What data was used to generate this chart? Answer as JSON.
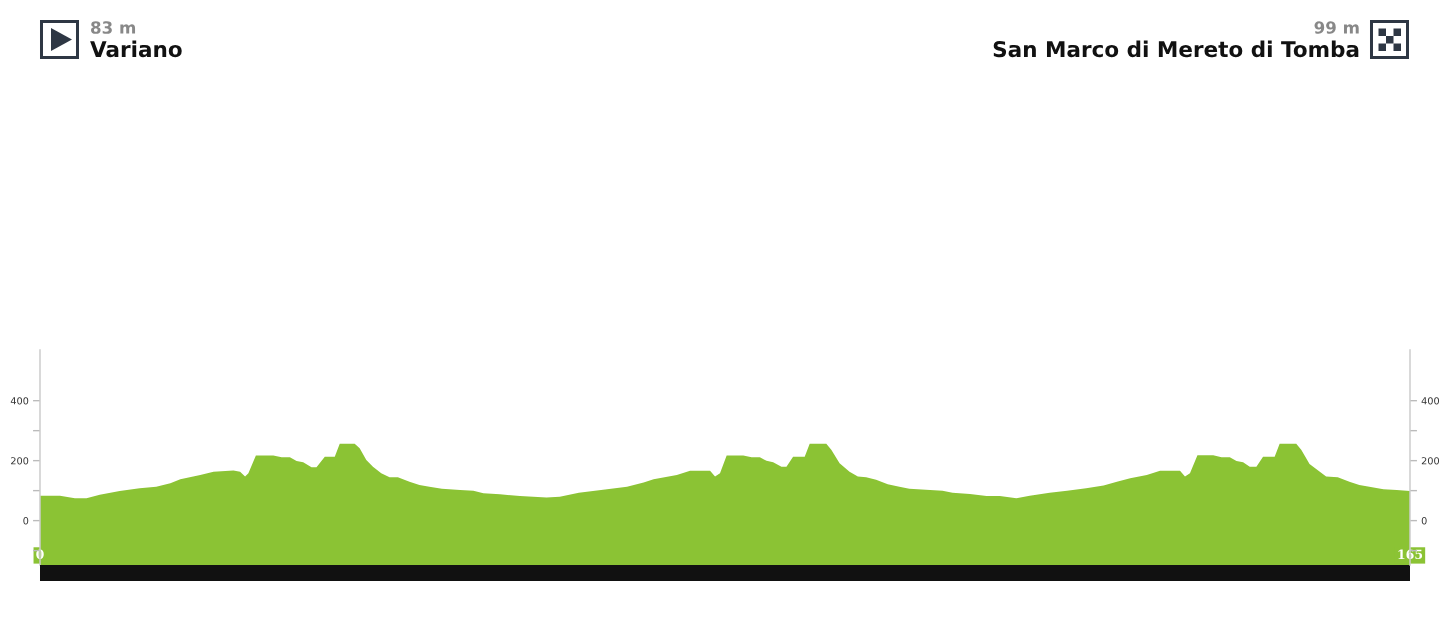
{
  "chart_data": {
    "type": "area",
    "annotations": [
      "83 m",
      "Variano",
      "99 m",
      "San Marco di Mereto di Tomba"
    ],
    "x": [
      0,
      0.6,
      2.4,
      4.2,
      5.6,
      7.2,
      9.6,
      12.0,
      14.0,
      15.7,
      16.9,
      19.3,
      20.9,
      23.3,
      24.1,
      24.7,
      25.1,
      26.0,
      28.1,
      29.1,
      30.1,
      30.9,
      31.7,
      32.7,
      33.3,
      34.3,
      35.5,
      36.1,
      37.9,
      38.5,
      39.3,
      40.1,
      41.1,
      42.1,
      43.1,
      44.5,
      45.7,
      46.9,
      48.4,
      50.6,
      52.2,
      53.4,
      55.4,
      57.8,
      61.0,
      62.6,
      64.9,
      68.3,
      70.7,
      72.7,
      73.9,
      76.7,
      78.3,
      80.7,
      81.3,
      81.9,
      82.7,
      84.7,
      85.7,
      86.7,
      87.5,
      88.3,
      89.3,
      89.9,
      90.7,
      92.1,
      92.7,
      94.7,
      95.3,
      96.3,
      97.5,
      98.5,
      99.5,
      100.7,
      102.1,
      103.5,
      104.7,
      108.7,
      109.9,
      112.0,
      114.0,
      115.6,
      117.6,
      119.2,
      121.6,
      123.7,
      126.0,
      128.1,
      129.7,
      131.3,
      133.3,
      134.9,
      137.3,
      137.9,
      138.5,
      139.4,
      141.3,
      142.3,
      143.3,
      144.1,
      144.9,
      145.7,
      146.5,
      147.3,
      148.7,
      149.3,
      151.3,
      151.9,
      152.9,
      154.9,
      156.3,
      157.7,
      158.9,
      160.1,
      161.8,
      163.4,
      165
    ],
    "values": [
      83,
      83,
      83,
      75,
      75,
      86,
      99,
      108,
      113,
      125,
      138,
      152,
      163,
      167,
      163,
      147,
      158,
      217,
      217,
      211,
      211,
      199,
      195,
      178,
      178,
      213,
      213,
      256,
      256,
      241,
      202,
      180,
      158,
      145,
      145,
      130,
      119,
      113,
      106,
      102,
      100,
      91,
      88,
      82,
      77,
      80,
      93,
      105,
      113,
      127,
      138,
      152,
      166,
      166,
      147,
      158,
      217,
      217,
      211,
      211,
      200,
      195,
      180,
      180,
      213,
      213,
      256,
      256,
      236,
      191,
      163,
      147,
      145,
      136,
      121,
      113,
      106,
      100,
      93,
      89,
      82,
      82,
      75,
      83,
      93,
      100,
      108,
      117,
      130,
      141,
      152,
      166,
      166,
      147,
      158,
      218,
      218,
      211,
      211,
      199,
      195,
      180,
      180,
      213,
      213,
      256,
      256,
      236,
      189,
      147,
      145,
      130,
      119,
      113,
      105,
      102,
      99
    ],
    "color": "#8bc334",
    "bands": [
      {
        "axis": "y",
        "from": -148,
        "to": 0,
        "color": "#8bc334"
      }
    ],
    "xlim": [
      0,
      165
    ],
    "xticks": [
      0,
      165
    ],
    "ylim": [
      -148,
      569
    ],
    "yticks": [
      {
        "value": -100,
        "label": null
      },
      0,
      {
        "value": 100,
        "label": null
      },
      200,
      {
        "value": 300,
        "label": null
      },
      400
    ],
    "y2lim": [
      -148,
      569
    ],
    "y2ticks": [
      {
        "value": -100,
        "label": null
      },
      0,
      {
        "value": 100,
        "label": null
      },
      200,
      {
        "value": 300,
        "label": null
      },
      400
    ]
  }
}
